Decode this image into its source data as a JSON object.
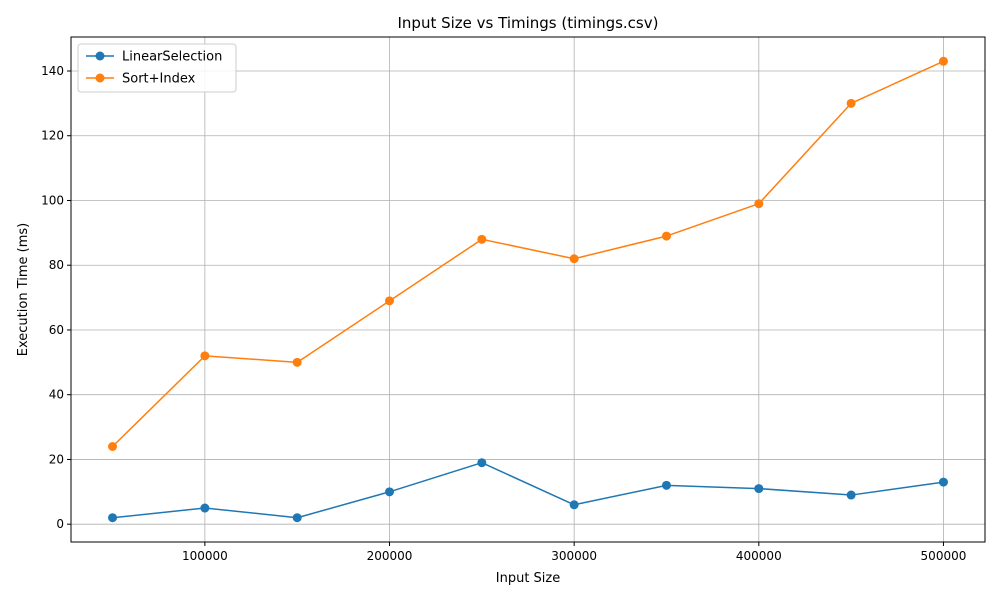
{
  "chart_data": {
    "type": "line",
    "title": "Input Size vs Timings (timings.csv)",
    "xlabel": "Input Size",
    "ylabel": "Execution Time (ms)",
    "x": [
      50000,
      100000,
      150000,
      200000,
      250000,
      300000,
      350000,
      400000,
      450000,
      500000
    ],
    "xlim": [
      27500,
      522500
    ],
    "ylim": [
      -5.5,
      150.5
    ],
    "xticks": [
      100000,
      200000,
      300000,
      400000,
      500000
    ],
    "yticks": [
      0,
      20,
      40,
      60,
      80,
      100,
      120,
      140
    ],
    "xtick_labels": [
      "100000",
      "200000",
      "300000",
      "400000",
      "500000"
    ],
    "ytick_labels": [
      "0",
      "20",
      "40",
      "60",
      "80",
      "100",
      "120",
      "140"
    ],
    "grid": true,
    "legend_position": "top-left",
    "series": [
      {
        "name": "LinearSelection",
        "color": "#1f77b4",
        "marker": "circle",
        "values": [
          2,
          5,
          2,
          10,
          19,
          6,
          12,
          11,
          9,
          13
        ]
      },
      {
        "name": "Sort+Index",
        "color": "#ff7f0e",
        "marker": "circle",
        "values": [
          24,
          52,
          50,
          69,
          88,
          82,
          89,
          99,
          130,
          143
        ]
      }
    ]
  }
}
